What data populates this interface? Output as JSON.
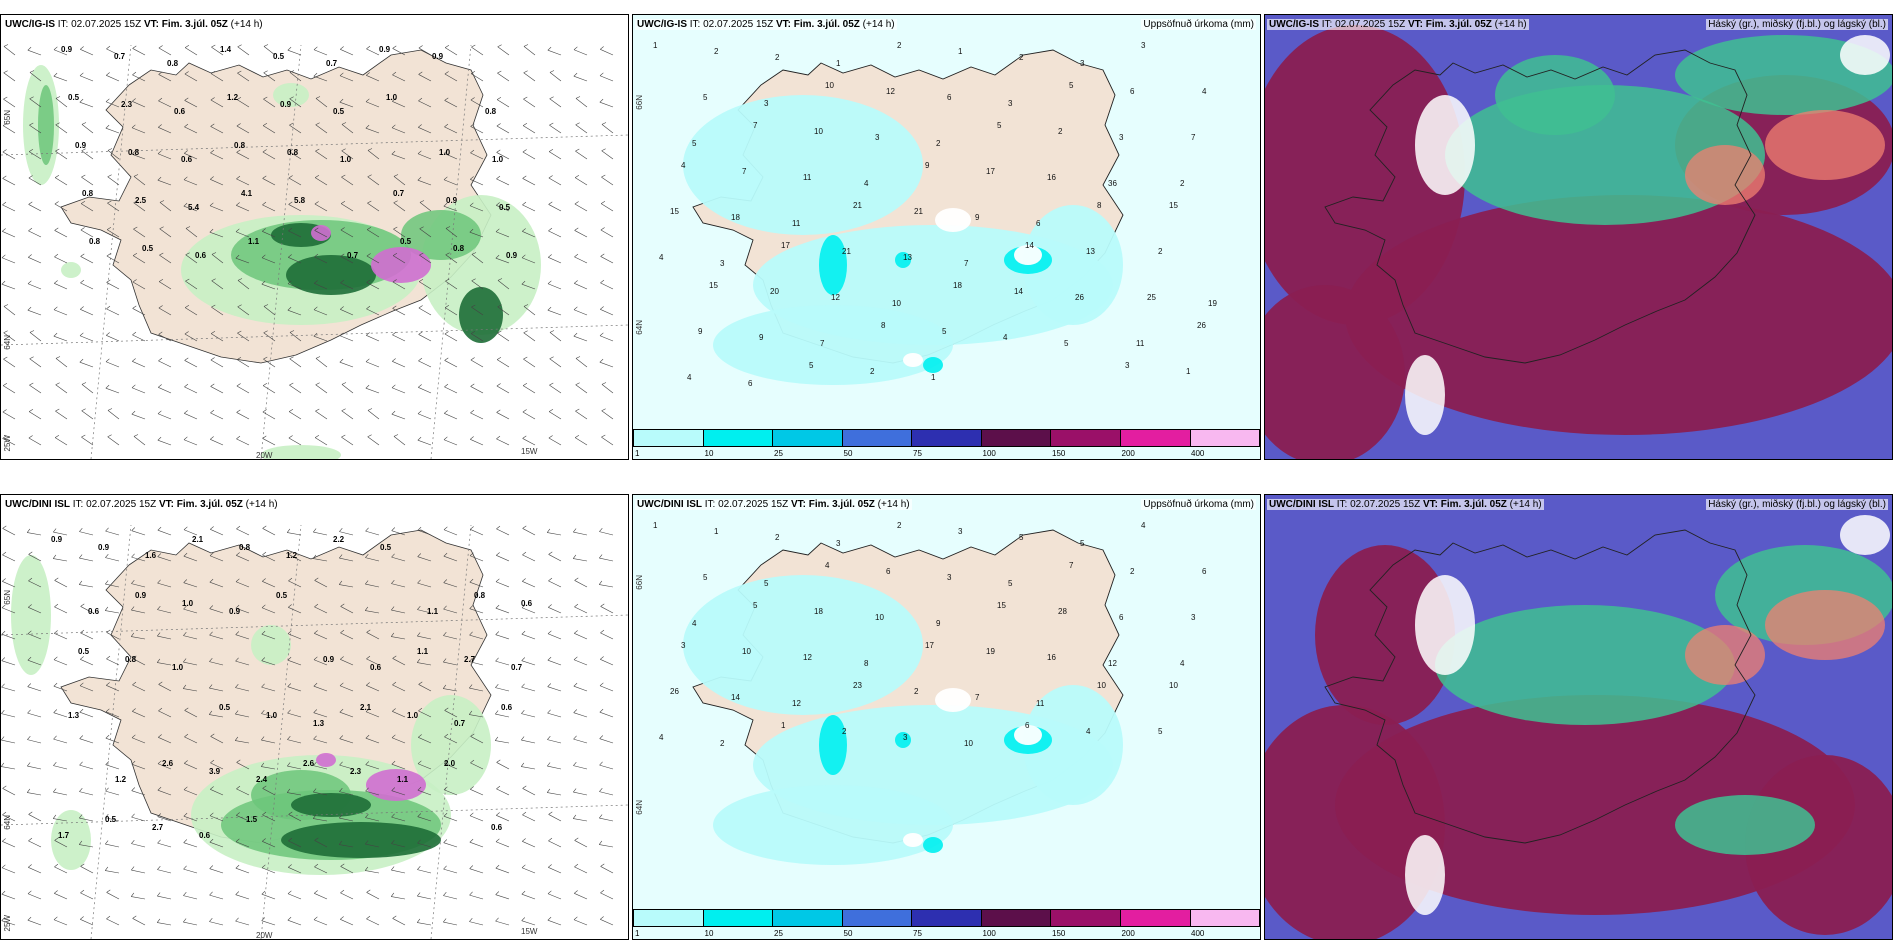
{
  "panels": [
    {
      "model": "UWC/IG-IS",
      "it_label": "IT: 02.07.2025 15Z",
      "vt_label": "VT: Fim. 3.júl. 05Z",
      "lead": "(+14 h)",
      "right_title": "",
      "axis_labels": [
        "65N",
        "64N",
        "25W",
        "20W",
        "15W"
      ],
      "numbers": [
        "0.9",
        "0.7",
        "0.8",
        "1.4",
        "0.5",
        "0.7",
        "0.9",
        "0.9",
        "0.8",
        "0.5",
        "2.3",
        "0.6",
        "1.2",
        "0.9",
        "0.5",
        "1.0",
        "1.0",
        "1.0",
        "0.9",
        "0.8",
        "0.6",
        "0.8",
        "0.8",
        "1.0",
        "0.7",
        "0.9",
        "0.5",
        "0.8",
        "2.5",
        "5.4",
        "4.1",
        "5.8",
        "0.7",
        "0.5",
        "0.8",
        "0.9",
        "0.8",
        "0.5",
        "0.6",
        "1.1"
      ]
    },
    {
      "model": "UWC/IG-IS",
      "it_label": "IT: 02.07.2025 15Z",
      "vt_label": "VT: Fim. 3.júl. 05Z",
      "lead": "(+14 h)",
      "right_title": "Uppsöfnuð úrkoma (mm)",
      "axis_labels": [
        "66N",
        "64N"
      ],
      "numbers": [
        "1",
        "2",
        "2",
        "1",
        "2",
        "1",
        "2",
        "3",
        "3",
        "4",
        "5",
        "3",
        "10",
        "12",
        "6",
        "3",
        "5",
        "6",
        "7",
        "5",
        "7",
        "10",
        "3",
        "2",
        "5",
        "2",
        "3",
        "2",
        "4",
        "7",
        "11",
        "4",
        "9",
        "17",
        "16",
        "36",
        "15",
        "15",
        "18",
        "11",
        "21",
        "21",
        "9",
        "6",
        "8",
        "2",
        "4",
        "3",
        "17",
        "21",
        "13",
        "7",
        "14",
        "13",
        "25",
        "19",
        "15",
        "20",
        "12",
        "10",
        "18",
        "14",
        "26",
        "11",
        "26",
        "9",
        "9",
        "7",
        "8",
        "5",
        "4",
        "5",
        "3",
        "1",
        "4",
        "6",
        "5",
        "2",
        "1"
      ],
      "colorbar": {
        "labels": [
          "1",
          "10",
          "25",
          "50",
          "75",
          "100",
          "150",
          "200",
          "400"
        ]
      }
    },
    {
      "model": "UWC/IG-IS",
      "it_label": "IT: 02.07.2025 15Z",
      "vt_label": "VT: Fim. 3.júl. 05Z",
      "lead": "(+14 h)",
      "right_title": "Háský (gr.), miðský (fj.bl.) og lágský (bl.)"
    },
    {
      "model": "UWC/DINI ISL",
      "it_label": "IT: 02.07.2025 15Z",
      "vt_label": "VT: Fim. 3.júl. 05Z",
      "lead": "(+14 h)",
      "right_title": "",
      "axis_labels": [
        "65N",
        "64N",
        "25W",
        "20W",
        "15W"
      ],
      "numbers": [
        "0.9",
        "0.9",
        "1.6",
        "2.1",
        "0.8",
        "1.2",
        "2.2",
        "0.5",
        "1.1",
        "0.8",
        "0.6",
        "0.6",
        "0.9",
        "1.0",
        "0.9",
        "0.5",
        "0.9",
        "0.6",
        "1.1",
        "2.7",
        "0.7",
        "0.5",
        "0.8",
        "1.0",
        "0.5",
        "1.0",
        "1.3",
        "2.1",
        "1.0",
        "0.7",
        "0.6",
        "1.3",
        "1.2",
        "2.6",
        "3.9",
        "2.4",
        "2.6",
        "2.3",
        "1.1",
        "2.0",
        "0.6",
        "1.7",
        "0.5",
        "2.7",
        "0.6",
        "1.5"
      ]
    },
    {
      "model": "UWC/DINI ISL",
      "it_label": "IT: 02.07.2025 15Z",
      "vt_label": "VT: Fim. 3.júl. 05Z",
      "lead": "(+14 h)",
      "right_title": "Uppsöfnuð úrkoma (mm)",
      "axis_labels": [
        "66N",
        "64N"
      ],
      "numbers": [
        "1",
        "1",
        "2",
        "3",
        "2",
        "3",
        "5",
        "5",
        "4",
        "6",
        "5",
        "5",
        "4",
        "6",
        "3",
        "5",
        "7",
        "2",
        "3",
        "4",
        "5",
        "18",
        "10",
        "9",
        "15",
        "28",
        "6",
        "4",
        "3",
        "10",
        "12",
        "8",
        "17",
        "19",
        "16",
        "12",
        "10",
        "26",
        "14",
        "12",
        "23",
        "2",
        "7",
        "11",
        "10",
        "5",
        "4",
        "2",
        "1",
        "2",
        "3",
        "10",
        "6",
        "4"
      ],
      "colorbar": {
        "labels": [
          "1",
          "10",
          "25",
          "50",
          "75",
          "100",
          "150",
          "200",
          "400"
        ]
      }
    },
    {
      "model": "UWC/DINI ISL",
      "it_label": "IT: 02.07.2025 15Z",
      "vt_label": "VT: Fim. 3.júl. 05Z",
      "lead": "(+14 h)",
      "right_title": "Háský (gr.), miðský (fj.bl.) og lágský (bl.)"
    }
  ],
  "colors": {
    "land": "#f2e3d5",
    "precip_scale": [
      "#b8fbfb",
      "#00efef",
      "#00c8e6",
      "#3f6fdc",
      "#2d2fb0",
      "#5c0f4a",
      "#9a1068",
      "#e31ea0",
      "#f8b8f0"
    ],
    "snow_pink": "#d06ed0",
    "green_light": "#c8efc4",
    "green_mid": "#6cc57a",
    "green_dark": "#1e6e37",
    "cloud_high": "#3fbf92",
    "cloud_mid": "#8a1f52",
    "cloud_low": "#5a5ac8"
  }
}
